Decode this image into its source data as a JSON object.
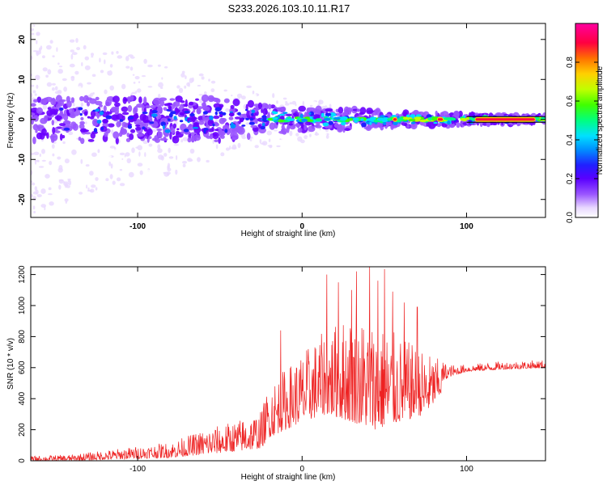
{
  "title": "S233.2026.103.10.11.R17",
  "colors": {
    "snr_line": "#ee2222",
    "colormap": [
      "#ffffff",
      "#e8d8ff",
      "#c9a6ff",
      "#9a55ff",
      "#6a00ff",
      "#2020ff",
      "#0090ff",
      "#00e0ff",
      "#00ff80",
      "#40ff00",
      "#c0ff00",
      "#ffd000",
      "#ff7000",
      "#ff0040",
      "#ff00a0"
    ]
  },
  "chart_data": [
    {
      "type": "heatmap",
      "xlabel": "Height of straight line (km)",
      "ylabel": "Frequency (Hz)",
      "xlim": [
        -165,
        148
      ],
      "ylim": [
        -24.5,
        24
      ],
      "xticks": [
        -100,
        0,
        100
      ],
      "xtick_labels": [
        "-100",
        "0",
        "100"
      ],
      "yticks": [
        -20,
        -10,
        0,
        10,
        20
      ],
      "ytick_labels": [
        "-20",
        "-10",
        "0",
        "10",
        "20"
      ],
      "colorbar": {
        "label": "Normalized spectral amplitude",
        "range": [
          0,
          1
        ],
        "ticks": [
          0.0,
          0.2,
          0.4,
          0.6,
          0.8
        ],
        "tick_labels": [
          "0.0",
          "0.2",
          "0.4",
          "0.6",
          "0.8"
        ]
      },
      "description_points": {
        "ridge_frequency_hz": 0,
        "band_halfwidth_hz": [
          [
            -165,
            6
          ],
          [
            -100,
            6
          ],
          [
            -50,
            6
          ],
          [
            -20,
            4
          ],
          [
            0,
            3
          ],
          [
            30,
            3
          ],
          [
            60,
            2
          ],
          [
            100,
            1.5
          ],
          [
            148,
            1
          ]
        ],
        "strong_segments_km": [
          [
            55,
            58
          ],
          [
            82,
            86
          ],
          [
            105,
            142
          ]
        ]
      }
    },
    {
      "type": "line",
      "xlabel": "Height of straight line (km)",
      "ylabel": "SNR (10 * v/v)",
      "xlim": [
        -165,
        148
      ],
      "ylim": [
        0,
        1250
      ],
      "xticks": [
        -100,
        0,
        100
      ],
      "xtick_labels": [
        "-100",
        "0",
        "100"
      ],
      "yticks": [
        0,
        200,
        400,
        600,
        800,
        1000,
        1200
      ],
      "ytick_labels": [
        "0",
        "200",
        "400",
        "600",
        "800",
        "1000",
        "1200"
      ],
      "envelope": {
        "x": [
          -165,
          -140,
          -110,
          -80,
          -60,
          -40,
          -25,
          -20,
          -10,
          0,
          15,
          30,
          45,
          60,
          75,
          90,
          100,
          120,
          148
        ],
        "lower": [
          0,
          0,
          10,
          20,
          40,
          60,
          80,
          150,
          200,
          250,
          300,
          250,
          200,
          250,
          300,
          500,
          550,
          560,
          570
        ],
        "upper": [
          30,
          40,
          80,
          120,
          200,
          260,
          320,
          500,
          600,
          700,
          850,
          950,
          900,
          800,
          700,
          620,
          620,
          640,
          650
        ]
      },
      "spikes": [
        {
          "x": -13,
          "y": 840
        },
        {
          "x": 15,
          "y": 1200
        },
        {
          "x": 22,
          "y": 1150
        },
        {
          "x": 30,
          "y": 1100
        },
        {
          "x": 33,
          "y": 1220
        },
        {
          "x": 41,
          "y": 1250
        },
        {
          "x": 46,
          "y": 1160
        },
        {
          "x": 50,
          "y": 1235
        },
        {
          "x": 55,
          "y": 1090
        },
        {
          "x": 62,
          "y": 1020
        },
        {
          "x": 70,
          "y": 990
        }
      ]
    }
  ]
}
